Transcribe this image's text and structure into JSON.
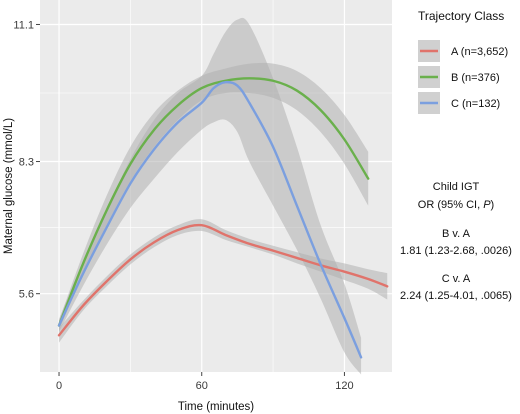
{
  "chart_data": {
    "type": "line",
    "xlabel": "Time (minutes)",
    "ylabel": "Maternal glucose (mmol/L)",
    "xlim": [
      -8,
      140
    ],
    "ylim": [
      4.0,
      11.6
    ],
    "x_ticks": [
      0,
      60,
      120
    ],
    "y_ticks": [
      5.6,
      8.3,
      11.1
    ],
    "grid": true,
    "legend_position": "right",
    "legend_title": "Trajectory Class",
    "series": [
      {
        "name": "A (n=3,652)",
        "color": "#e0736b",
        "x": [
          0,
          10,
          20,
          30,
          40,
          50,
          60,
          70,
          80,
          90,
          100,
          110,
          120,
          130,
          138
        ],
        "y": [
          4.75,
          5.35,
          5.85,
          6.3,
          6.65,
          6.9,
          7.0,
          6.8,
          6.62,
          6.48,
          6.33,
          6.18,
          6.05,
          5.9,
          5.75
        ],
        "ci_low": [
          4.6,
          5.25,
          5.75,
          6.2,
          6.55,
          6.8,
          6.88,
          6.7,
          6.55,
          6.4,
          6.22,
          6.05,
          5.88,
          5.7,
          5.48
        ],
        "ci_high": [
          4.9,
          5.45,
          5.95,
          6.4,
          6.75,
          7.0,
          7.12,
          6.9,
          6.72,
          6.58,
          6.45,
          6.32,
          6.22,
          6.1,
          6.02
        ]
      },
      {
        "name": "B (n=376)",
        "color": "#6ab04c",
        "x": [
          0,
          10,
          20,
          30,
          40,
          50,
          60,
          70,
          80,
          90,
          100,
          110,
          120,
          130
        ],
        "y": [
          4.95,
          6.2,
          7.3,
          8.25,
          8.95,
          9.45,
          9.8,
          9.95,
          10.0,
          9.95,
          9.75,
          9.35,
          8.75,
          7.95
        ],
        "ci_low": [
          4.85,
          6.0,
          7.0,
          7.9,
          8.6,
          9.15,
          9.55,
          9.7,
          9.7,
          9.6,
          9.35,
          8.9,
          8.25,
          7.4
        ],
        "ci_high": [
          5.05,
          6.4,
          7.6,
          8.6,
          9.3,
          9.75,
          10.05,
          10.2,
          10.3,
          10.3,
          10.15,
          9.8,
          9.25,
          8.5
        ]
      },
      {
        "name": "C (n=132)",
        "color": "#7b9fdf",
        "x": [
          0,
          10,
          20,
          30,
          40,
          50,
          60,
          65,
          70,
          75,
          80,
          90,
          100,
          110,
          120,
          127
        ],
        "y": [
          4.95,
          6.0,
          6.95,
          7.85,
          8.55,
          9.1,
          9.5,
          9.8,
          9.92,
          9.85,
          9.5,
          8.6,
          7.4,
          6.2,
          5.1,
          4.3
        ],
        "ci_low": [
          4.82,
          5.75,
          6.6,
          7.35,
          7.95,
          8.5,
          8.95,
          9.1,
          9.15,
          8.9,
          8.3,
          7.4,
          6.5,
          5.5,
          4.4,
          3.95
        ],
        "ci_high": [
          5.08,
          6.25,
          7.3,
          8.35,
          9.15,
          9.7,
          10.05,
          10.5,
          10.95,
          11.2,
          11.1,
          10.0,
          8.6,
          7.0,
          5.8,
          4.7
        ]
      }
    ],
    "annotations": [
      "Child IGT",
      "OR (95% CI, P)",
      "B v. A",
      "1.81 (1.23-2.68, .0026)",
      "C v. A",
      "2.24 (1.25-4.01, .0065)"
    ]
  },
  "colors": {
    "panel": "#ebebeb",
    "grid": "#ffffff",
    "ribbon": "#b0b0b0"
  },
  "annotation_block": {
    "heading": "Child IGT",
    "or_prefix": "OR (95% CI, ",
    "or_italic": "P",
    "or_suffix": ")",
    "comparisons": [
      {
        "label": "B v. A",
        "value": "1.81 (1.23-2.68, .0026)"
      },
      {
        "label": "C v. A",
        "value": "2.24 (1.25-4.01, .0065)"
      }
    ]
  }
}
